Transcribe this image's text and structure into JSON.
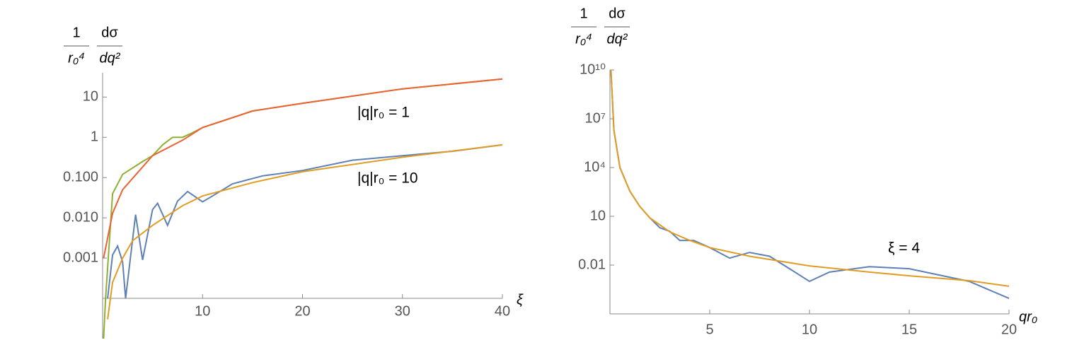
{
  "chart_data": [
    {
      "type": "line",
      "log_y": true,
      "ylabel": [
        {
          "top": "1",
          "bottom": "r₀⁴"
        },
        {
          "top": "dσ",
          "bottom": "dq²"
        }
      ],
      "xlabel": "ξ",
      "xlim": [
        0,
        40
      ],
      "xticks": [
        10,
        20,
        30,
        40
      ],
      "ylim": [
        1e-05,
        40
      ],
      "yticks": [
        0.001,
        {
          "value": 0.01,
          "label": "0.010"
        },
        {
          "value": 0.1,
          "label": "0.100"
        },
        1,
        10
      ],
      "x_axis_at": 0.0001,
      "annotations": [
        "|q|r₀ = 1",
        "|q|r₀ = 10"
      ],
      "series": [
        {
          "color": "#8fb032",
          "x": [
            0.1,
            0.3,
            1,
            2,
            4,
            5,
            6,
            7,
            8,
            9,
            10,
            15,
            20,
            30,
            40
          ],
          "values": [
            1e-05,
            0.0001,
            0.04,
            0.12,
            0.25,
            0.35,
            0.65,
            1.0,
            1.0,
            1.3,
            1.75,
            4.5,
            7,
            16,
            28
          ]
        },
        {
          "color": "#eb6235",
          "x": [
            0.1,
            1,
            2,
            5,
            8,
            10,
            15,
            20,
            30,
            40
          ],
          "values": [
            0.001,
            0.013,
            0.05,
            0.35,
            0.85,
            1.75,
            4.5,
            7,
            16,
            28
          ]
        },
        {
          "color": "#5e81b5",
          "x": [
            0.5,
            1,
            1.5,
            2,
            2.3,
            3.3,
            4,
            5,
            5.5,
            6.5,
            7.5,
            8.5,
            10,
            11,
            13,
            16,
            20,
            25,
            30,
            35,
            40
          ],
          "values": [
            0.0001,
            0.0012,
            0.002,
            0.0008,
            0.0001,
            0.012,
            0.0009,
            0.016,
            0.023,
            0.0065,
            0.026,
            0.045,
            0.025,
            0.035,
            0.07,
            0.11,
            0.15,
            0.27,
            0.35,
            0.45,
            0.65
          ]
        },
        {
          "color": "#e19c24",
          "x": [
            0.5,
            1,
            2,
            3,
            5,
            8,
            10,
            15,
            20,
            30,
            40
          ],
          "values": [
            3e-05,
            0.00025,
            0.001,
            0.0027,
            0.0065,
            0.02,
            0.035,
            0.075,
            0.14,
            0.32,
            0.65
          ]
        }
      ]
    },
    {
      "type": "line",
      "log_y": true,
      "ylabel": [
        {
          "top": "1",
          "bottom": "r₀⁴"
        },
        {
          "top": "dσ",
          "bottom": "dq²"
        }
      ],
      "xlabel": "qr₀",
      "xlim": [
        0,
        20
      ],
      "xticks": [
        5,
        10,
        15,
        20
      ],
      "ylim": [
        1e-05,
        10000000000
      ],
      "yticks": [
        0.01,
        10,
        {
          "value": 10000,
          "label": "10⁴"
        },
        {
          "value": 10000000,
          "label": "10⁷"
        },
        {
          "value": 10000000000,
          "label": "10¹⁰"
        }
      ],
      "x_axis_at": 1e-05,
      "annotations": [
        "ξ = 4"
      ],
      "series": [
        {
          "color": "#5e81b5",
          "x": [
            0.05,
            0.2,
            0.5,
            1,
            1.5,
            2,
            2.5,
            3,
            3.5,
            4.2,
            5,
            6,
            7,
            8,
            9,
            10,
            11,
            13,
            15,
            18,
            20
          ],
          "values": [
            10000000000,
            2000000,
            10000,
            350,
            40,
            8,
            2,
            1.2,
            0.33,
            0.33,
            0.12,
            0.027,
            0.06,
            0.035,
            0.006,
            0.001,
            0.0037,
            0.008,
            0.006,
            0.001,
            9e-05
          ]
        },
        {
          "color": "#e19c24",
          "x": [
            0.05,
            0.2,
            0.5,
            1,
            1.5,
            2,
            3,
            4,
            5,
            7,
            10,
            13,
            15,
            18,
            20
          ],
          "values": [
            10000000000,
            2000000,
            10000,
            350,
            40,
            8,
            1.1,
            0.33,
            0.12,
            0.035,
            0.009,
            0.0037,
            0.0022,
            0.0011,
            0.0005
          ]
        }
      ]
    }
  ]
}
